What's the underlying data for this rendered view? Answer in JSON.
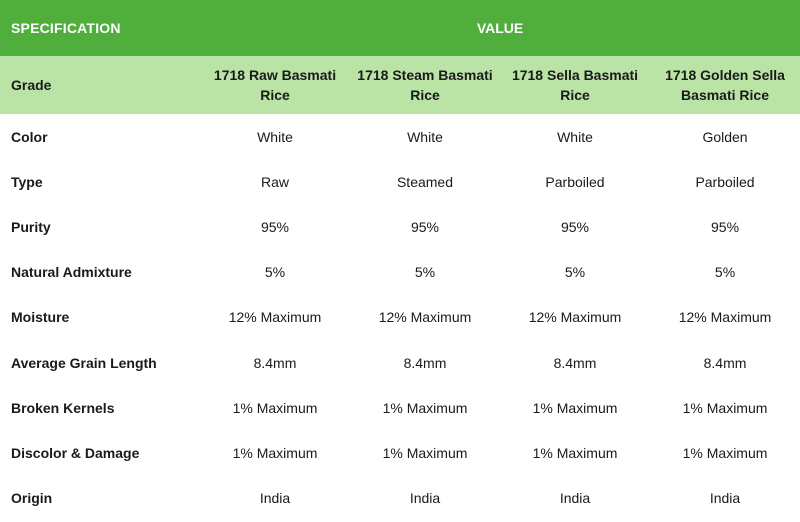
{
  "header": {
    "spec_label": "SPECIFICATION",
    "value_label": "VALUE"
  },
  "grade": {
    "label": "Grade",
    "columns": [
      "1718 Raw Basmati Rice",
      "1718 Steam Basmati Rice",
      "1718 Sella Basmati Rice",
      "1718 Golden Sella Basmati Rice"
    ]
  },
  "rows": [
    {
      "label": "Color",
      "values": [
        "White",
        "White",
        "White",
        "Golden"
      ]
    },
    {
      "label": "Type",
      "values": [
        "Raw",
        "Steamed",
        "Parboiled",
        "Parboiled"
      ]
    },
    {
      "label": "Purity",
      "values": [
        "95%",
        "95%",
        "95%",
        "95%"
      ]
    },
    {
      "label": "Natural Admixture",
      "values": [
        "5%",
        "5%",
        "5%",
        "5%"
      ]
    },
    {
      "label": "Moisture",
      "values": [
        "12% Maximum",
        "12% Maximum",
        "12% Maximum",
        "12% Maximum"
      ]
    },
    {
      "label": "Average Grain Length",
      "values": [
        "8.4mm",
        "8.4mm",
        "8.4mm",
        "8.4mm"
      ]
    },
    {
      "label": "Broken Kernels",
      "values": [
        "1% Maximum",
        "1% Maximum",
        "1% Maximum",
        "1% Maximum"
      ]
    },
    {
      "label": "Discolor & Damage",
      "values": [
        "1% Maximum",
        "1% Maximum",
        "1% Maximum",
        "1% Maximum"
      ]
    },
    {
      "label": "Origin",
      "values": [
        "India",
        "India",
        "India",
        "India"
      ]
    }
  ],
  "colors": {
    "header_bg": "#4fae3c",
    "grade_bg": "#b9e4a6"
  }
}
